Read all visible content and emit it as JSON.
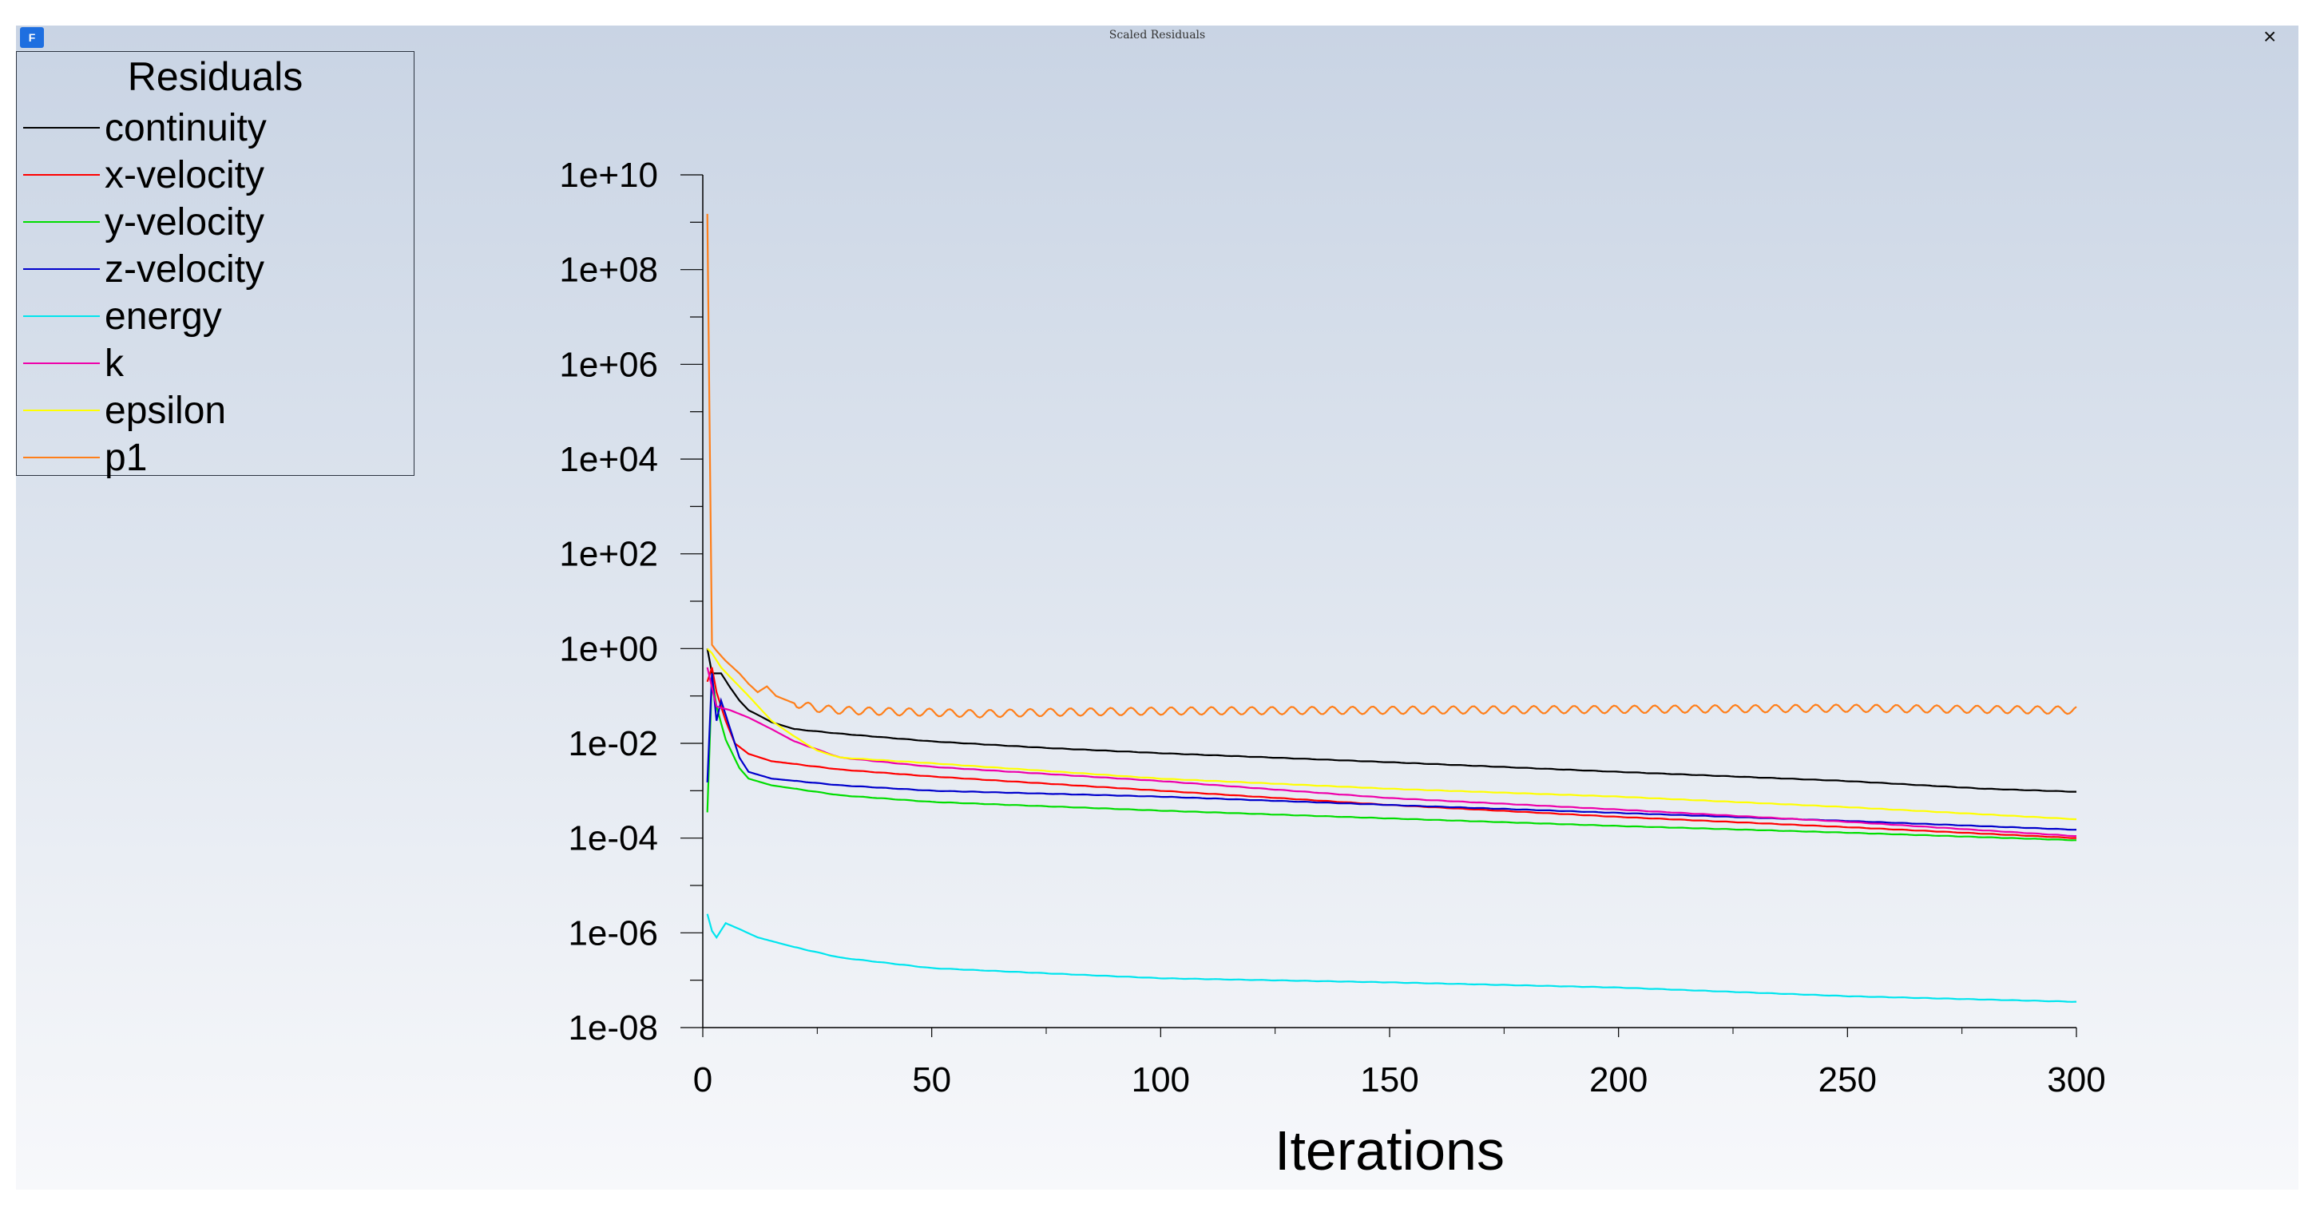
{
  "window": {
    "title": "Scaled Residuals",
    "close_glyph": "×",
    "app_icon_letter": "F"
  },
  "legend": {
    "title": "Residuals",
    "items": [
      {
        "label": "continuity",
        "color": "#000000"
      },
      {
        "label": "x-velocity",
        "color": "#ff0000"
      },
      {
        "label": "y-velocity",
        "color": "#00dd00"
      },
      {
        "label": "z-velocity",
        "color": "#0000cc"
      },
      {
        "label": "energy",
        "color": "#00e5ee"
      },
      {
        "label": "k",
        "color": "#ee00aa"
      },
      {
        "label": "epsilon",
        "color": "#ffff00"
      },
      {
        "label": "p1",
        "color": "#ff7f1a"
      }
    ]
  },
  "chart_data": {
    "type": "line",
    "title": "Scaled Residuals",
    "xlabel": "Iterations",
    "ylabel": "",
    "xlim": [
      0,
      300
    ],
    "ylim": [
      1e-08,
      10000000000.0
    ],
    "yscale": "log",
    "x_ticks": [
      "0",
      "50",
      "100",
      "150",
      "200",
      "250",
      "300"
    ],
    "y_ticks": [
      "1e+10",
      "1e+08",
      "1e+06",
      "1e+04",
      "1e+02",
      "1e+00",
      "1e-02",
      "1e-04",
      "1e-06",
      "1e-08"
    ],
    "legend_title": "Residuals",
    "legend_position": "top-left",
    "series": [
      {
        "name": "continuity",
        "color": "#000000",
        "points": [
          [
            1,
            1.0
          ],
          [
            2,
            0.3
          ],
          [
            4,
            0.3
          ],
          [
            6,
            0.15
          ],
          [
            8,
            0.08
          ],
          [
            10,
            0.05
          ],
          [
            12,
            0.04
          ],
          [
            15,
            0.028
          ],
          [
            20,
            0.02
          ],
          [
            30,
            0.016
          ],
          [
            50,
            0.011
          ],
          [
            75,
            0.008
          ],
          [
            100,
            0.0062
          ],
          [
            150,
            0.004
          ],
          [
            200,
            0.0025
          ],
          [
            250,
            0.0016
          ],
          [
            280,
            0.0011
          ],
          [
            300,
            0.00095
          ]
        ]
      },
      {
        "name": "x-velocity",
        "color": "#ff0000",
        "points": [
          [
            1,
            0.2
          ],
          [
            2,
            0.4
          ],
          [
            3,
            0.12
          ],
          [
            5,
            0.03
          ],
          [
            7,
            0.01
          ],
          [
            10,
            0.006
          ],
          [
            15,
            0.0042
          ],
          [
            30,
            0.0028
          ],
          [
            50,
            0.002
          ],
          [
            100,
            0.001
          ],
          [
            150,
            0.0005
          ],
          [
            200,
            0.00028
          ],
          [
            250,
            0.00017
          ],
          [
            300,
            0.0001
          ]
        ]
      },
      {
        "name": "y-velocity",
        "color": "#00dd00",
        "points": [
          [
            1,
            0.00035
          ],
          [
            2,
            0.25
          ],
          [
            3,
            0.06
          ],
          [
            5,
            0.012
          ],
          [
            8,
            0.003
          ],
          [
            10,
            0.0018
          ],
          [
            15,
            0.0013
          ],
          [
            30,
            0.0008
          ],
          [
            50,
            0.00058
          ],
          [
            100,
            0.00038
          ],
          [
            150,
            0.00026
          ],
          [
            200,
            0.00018
          ],
          [
            250,
            0.00013
          ],
          [
            300,
            9e-05
          ]
        ]
      },
      {
        "name": "z-velocity",
        "color": "#0000cc",
        "points": [
          [
            1,
            0.0015
          ],
          [
            2,
            0.3
          ],
          [
            3,
            0.03
          ],
          [
            4,
            0.08
          ],
          [
            6,
            0.02
          ],
          [
            8,
            0.005
          ],
          [
            10,
            0.0025
          ],
          [
            15,
            0.0018
          ],
          [
            30,
            0.0013
          ],
          [
            50,
            0.001
          ],
          [
            100,
            0.00075
          ],
          [
            150,
            0.0005
          ],
          [
            200,
            0.00034
          ],
          [
            250,
            0.00023
          ],
          [
            300,
            0.00015
          ]
        ]
      },
      {
        "name": "energy",
        "color": "#00e5ee",
        "points": [
          [
            1,
            2.5e-06
          ],
          [
            2,
            1.1e-06
          ],
          [
            3,
            8e-07
          ],
          [
            5,
            1.6e-06
          ],
          [
            8,
            1.2e-06
          ],
          [
            12,
            8e-07
          ],
          [
            20,
            5e-07
          ],
          [
            30,
            3e-07
          ],
          [
            50,
            1.8e-07
          ],
          [
            75,
            1.4e-07
          ],
          [
            100,
            1.1e-07
          ],
          [
            150,
            9e-08
          ],
          [
            200,
            7e-08
          ],
          [
            250,
            4.6e-08
          ],
          [
            300,
            3.5e-08
          ]
        ]
      },
      {
        "name": "k",
        "color": "#ee00aa",
        "points": [
          [
            1,
            0.4
          ],
          [
            2,
            0.15
          ],
          [
            3,
            0.06
          ],
          [
            6,
            0.05
          ],
          [
            10,
            0.035
          ],
          [
            15,
            0.02
          ],
          [
            20,
            0.011
          ],
          [
            30,
            0.005
          ],
          [
            50,
            0.0032
          ],
          [
            100,
            0.0016
          ],
          [
            150,
            0.0007
          ],
          [
            200,
            0.0004
          ],
          [
            250,
            0.00022
          ],
          [
            300,
            0.00011
          ]
        ]
      },
      {
        "name": "epsilon",
        "color": "#ffff00",
        "points": [
          [
            1,
            1.0
          ],
          [
            2,
            0.8
          ],
          [
            4,
            0.4
          ],
          [
            6,
            0.25
          ],
          [
            10,
            0.1
          ],
          [
            15,
            0.03
          ],
          [
            20,
            0.014
          ],
          [
            25,
            0.007
          ],
          [
            30,
            0.005
          ],
          [
            50,
            0.0038
          ],
          [
            100,
            0.0018
          ],
          [
            150,
            0.0011
          ],
          [
            200,
            0.00075
          ],
          [
            250,
            0.00045
          ],
          [
            300,
            0.00025
          ]
        ]
      },
      {
        "name": "p1",
        "color": "#ff7f1a",
        "points": [
          [
            1,
            1500000000.0
          ],
          [
            2,
            1.2
          ],
          [
            3,
            0.9
          ],
          [
            5,
            0.55
          ],
          [
            8,
            0.3
          ],
          [
            10,
            0.18
          ],
          [
            12,
            0.12
          ],
          [
            14,
            0.16
          ],
          [
            16,
            0.1
          ],
          [
            20,
            0.07
          ],
          [
            25,
            0.055
          ],
          [
            30,
            0.05
          ],
          [
            40,
            0.047
          ],
          [
            50,
            0.045
          ],
          [
            60,
            0.042
          ],
          [
            75,
            0.045
          ],
          [
            100,
            0.048
          ],
          [
            150,
            0.05
          ],
          [
            200,
            0.052
          ],
          [
            250,
            0.055
          ],
          [
            300,
            0.05
          ]
        ],
        "oscillating": true
      }
    ]
  }
}
